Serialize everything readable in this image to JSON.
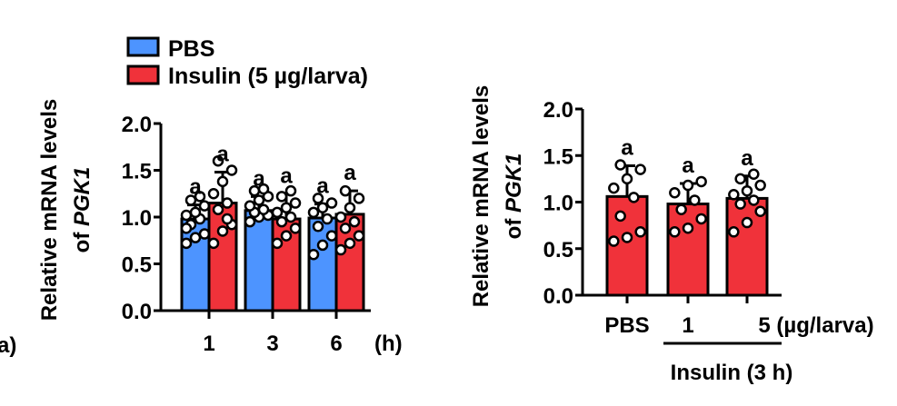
{
  "colors": {
    "pbs": "#4d94ff",
    "insulin": "#f0323a",
    "stroke": "#000000",
    "point_fill": "#ffffff"
  },
  "left_edge_fragment": "a)",
  "chart_data": [
    {
      "type": "bar",
      "ylabel_line1": "Relative mRNA levels",
      "ylabel_line2": "of PGK1",
      "ylim": [
        0,
        2.0
      ],
      "yticks": [
        "0.0",
        "0.5",
        "1.0",
        "1.5",
        "2.0"
      ],
      "categories": [
        "1",
        "3",
        "6"
      ],
      "x_unit": "(h)",
      "legend": [
        "PBS",
        "Insulin (5 µg/larva)"
      ],
      "series": [
        {
          "name": "PBS",
          "color": "#4d94ff",
          "values": [
            0.98,
            1.07,
            0.99
          ],
          "sd": [
            0.15,
            0.15,
            0.15
          ],
          "letters": [
            "a",
            "a",
            "a"
          ]
        },
        {
          "name": "Insulin (5 µg/larva)",
          "color": "#f0323a",
          "values": [
            1.15,
            0.98,
            1.03
          ],
          "sd": [
            0.33,
            0.27,
            0.25
          ],
          "letters": [
            "a",
            "a",
            "a"
          ]
        }
      ],
      "points": [
        [
          [
            0.72,
            0.78,
            0.82,
            0.92,
            0.98,
            1.02,
            1.05,
            1.12,
            1.18,
            1.22,
            0.88
          ],
          [
            0.72,
            0.85,
            0.92,
            1.08,
            1.15,
            1.25,
            1.38,
            1.5,
            1.6,
            0.98
          ]
        ],
        [
          [
            0.95,
            1.0,
            1.02,
            1.05,
            1.08,
            1.12,
            1.18,
            1.22,
            1.28,
            1.3
          ],
          [
            0.72,
            0.8,
            0.88,
            0.95,
            1.0,
            1.05,
            1.1,
            1.15,
            1.22,
            1.28
          ]
        ],
        [
          [
            0.6,
            0.7,
            0.8,
            0.9,
            0.98,
            1.05,
            1.1,
            1.15,
            1.2
          ],
          [
            0.65,
            0.72,
            0.8,
            0.88,
            0.95,
            1.0,
            1.1,
            1.2,
            1.28
          ]
        ]
      ]
    },
    {
      "type": "bar",
      "ylabel_line1": "Relative mRNA levels",
      "ylabel_line2": "of PGK1",
      "ylim": [
        0,
        2.0
      ],
      "yticks": [
        "0.0",
        "0.5",
        "1.0",
        "1.5",
        "2.0"
      ],
      "categories": [
        "PBS",
        "1",
        "5 (µg/larva)"
      ],
      "group_label": "Insulin (3 h)",
      "series": [
        {
          "name": "",
          "color": "#f0323a",
          "values": [
            1.06,
            0.98,
            1.04
          ],
          "sd": [
            0.33,
            0.22,
            0.24
          ],
          "letters": [
            "a",
            "a",
            "a"
          ]
        }
      ],
      "points": [
        [
          0.58,
          0.62,
          0.68,
          0.85,
          1.05,
          1.15,
          1.25,
          1.35,
          1.4
        ],
        [
          0.68,
          0.72,
          0.82,
          0.92,
          1.02,
          1.1,
          1.18,
          1.22
        ],
        [
          0.68,
          0.78,
          0.9,
          0.98,
          1.02,
          1.08,
          1.12,
          1.18,
          1.25,
          1.3
        ]
      ]
    }
  ]
}
